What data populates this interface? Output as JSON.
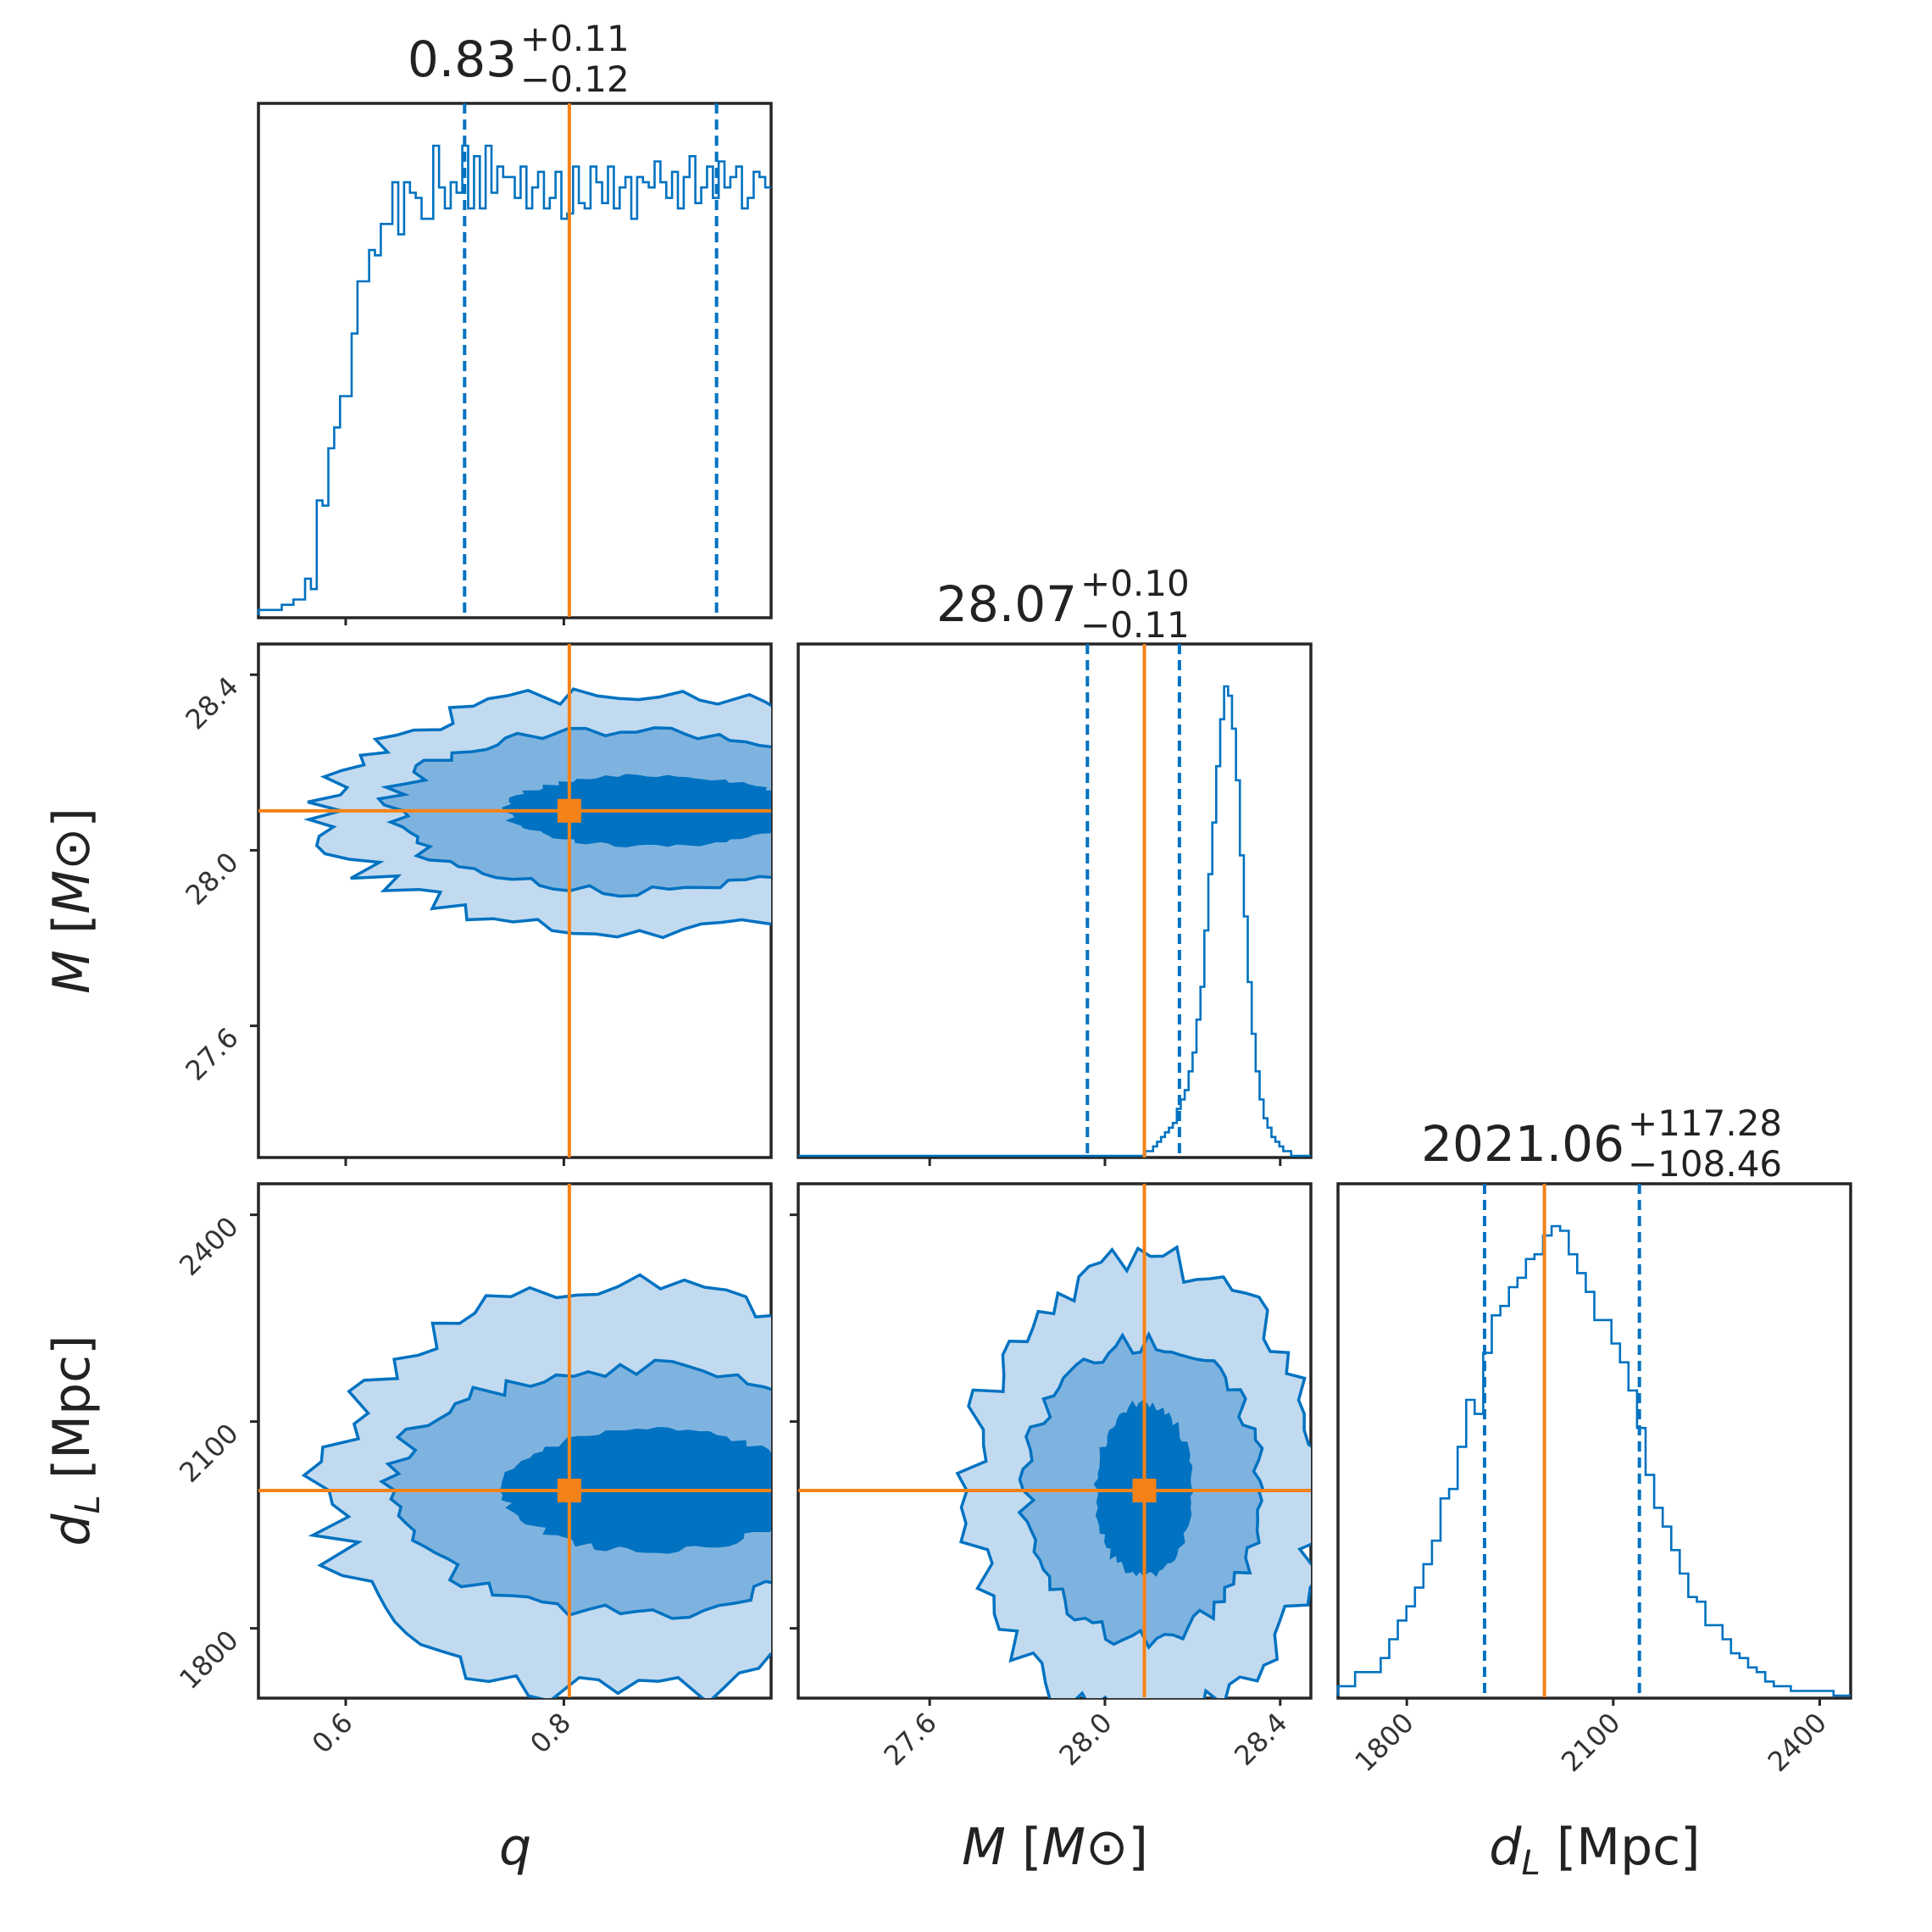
{
  "chart_data": {
    "type": "corner",
    "colors": {
      "posterior": "#0072c1",
      "contour_fill": [
        "#c2daf0",
        "#7fb3df",
        "#0072c1"
      ],
      "truth": "#f58218"
    },
    "parameters": [
      {
        "key": "q",
        "label_symbol": "q",
        "label_unit": "",
        "axis_range": [
          0.52,
          0.99
        ],
        "ticks": [
          0.6,
          0.8
        ],
        "tick_labels": [
          "0.6",
          "0.8"
        ],
        "truth": 0.805,
        "median": 0.83,
        "quantile_lower": 0.709,
        "quantile_upper": 0.94,
        "title_value": "0.83",
        "title_plus": "+0.11",
        "title_minus": "−0.12",
        "hist_bins": [
          0.52,
          0.99
        ],
        "hist_counts": [
          1,
          1,
          1,
          1,
          2,
          2,
          3,
          3,
          7,
          5,
          22,
          21,
          32,
          36,
          42,
          42,
          54,
          64,
          64,
          70,
          69,
          75,
          75,
          83,
          73,
          83,
          81,
          80,
          76,
          76,
          90,
          82,
          78,
          83,
          81,
          90,
          78,
          88,
          78,
          90,
          81,
          86,
          84,
          84,
          80,
          86,
          78,
          82,
          85,
          78,
          80,
          85,
          76,
          77,
          86,
          79,
          78,
          86,
          83,
          79,
          86,
          78,
          82,
          84,
          76,
          84,
          83,
          82,
          87,
          83,
          80,
          85,
          78,
          84,
          88,
          79,
          82,
          86,
          80,
          87,
          82,
          84,
          86,
          78,
          80,
          85,
          84,
          82
        ]
      },
      {
        "key": "M",
        "label_symbol": "M",
        "label_unit": "M⊙",
        "axis_range": [
          27.3,
          28.47
        ],
        "ticks": [
          27.6,
          28.0,
          28.4
        ],
        "tick_labels": [
          "27.6",
          "28.0",
          "28.4"
        ],
        "truth": 28.09,
        "median": 28.07,
        "quantile_lower": 27.96,
        "quantile_upper": 28.17,
        "title_value": "28.07",
        "title_plus": "+0.10",
        "title_minus": "−0.11",
        "hist_bins": [
          27.3,
          28.47
        ],
        "hist_counts": [
          0,
          0,
          0,
          0,
          0,
          0,
          0,
          0,
          0,
          0,
          0,
          0,
          0,
          0,
          0,
          0,
          0,
          0,
          0,
          0,
          0,
          0,
          0,
          0,
          0,
          0,
          0,
          0,
          0,
          0,
          0,
          0,
          0,
          0,
          0,
          0,
          0,
          0,
          0,
          0,
          0,
          0,
          0,
          0,
          0,
          0,
          0,
          0,
          0,
          0,
          0,
          0,
          0,
          0,
          0,
          0,
          0,
          0,
          0,
          0,
          0,
          0,
          0,
          0,
          0,
          0,
          0,
          0,
          0,
          0,
          0,
          0,
          0,
          0,
          0,
          0,
          0,
          0,
          0,
          0,
          0,
          0,
          0,
          0,
          0,
          0,
          0,
          0,
          1,
          1,
          2,
          3,
          4,
          5,
          6,
          7,
          10,
          12,
          14,
          18,
          22,
          29,
          36,
          48,
          60,
          71,
          83,
          93,
          100,
          98,
          91,
          80,
          64,
          51,
          37,
          26,
          18,
          12,
          8,
          6,
          4,
          3,
          2,
          1,
          1,
          0,
          0,
          0,
          0,
          0
        ]
      },
      {
        "key": "dL",
        "label_symbol": "d",
        "label_sub": "L",
        "label_unit": "Mpc",
        "axis_range": [
          1700,
          2445
        ],
        "ticks": [
          1800,
          2100,
          2400
        ],
        "tick_labels": [
          "1800",
          "2100",
          "2400"
        ],
        "truth": 2000,
        "median": 2021.06,
        "quantile_lower": 1913,
        "quantile_upper": 2138,
        "title_value": "2021.06",
        "title_plus": "+117.28",
        "title_minus": "−108.46",
        "hist_bins": [
          1700,
          2445
        ],
        "hist_counts": [
          2,
          2,
          5,
          5,
          5,
          8,
          12,
          16,
          19,
          23,
          28,
          33,
          42,
          44,
          53,
          63,
          60,
          73,
          81,
          83,
          87,
          89,
          93,
          94,
          98,
          100,
          99,
          94,
          90,
          86,
          80,
          80,
          75,
          71,
          65,
          57,
          47,
          40,
          36,
          31,
          26,
          21,
          20,
          15,
          15,
          12,
          9,
          8,
          6,
          5,
          3,
          2,
          2,
          1,
          1,
          1,
          1,
          1,
          0,
          0
        ]
      }
    ]
  }
}
